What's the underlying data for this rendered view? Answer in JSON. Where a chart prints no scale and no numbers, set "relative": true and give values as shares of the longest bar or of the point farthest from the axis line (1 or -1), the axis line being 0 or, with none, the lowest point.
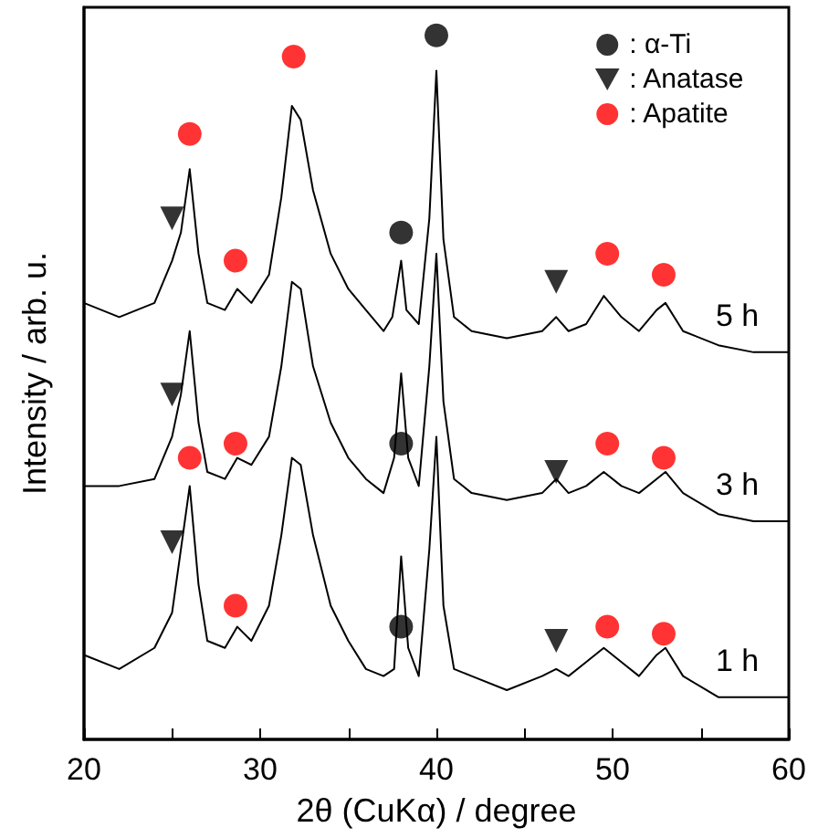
{
  "chart_data": {
    "type": "line",
    "relative": true,
    "xlabel": "2θ (CuKα) / degree",
    "ylabel": "Intensity / arb. u.",
    "xlim": [
      20,
      60
    ],
    "xticks": [
      20,
      {
        "value": 25,
        "label": null
      },
      30,
      {
        "value": 35,
        "label": null
      },
      40,
      {
        "value": 45,
        "label": null
      },
      50,
      {
        "value": 55,
        "label": null
      },
      60
    ],
    "grid": false,
    "legend": "top right",
    "tick_labels": "x",
    "line_style": "solid",
    "series": [
      {
        "name": "5 h",
        "color": "#000000",
        "marker": "none",
        "x": [
          20,
          21,
          22,
          23,
          24,
          25,
          25.5,
          26,
          26.5,
          27,
          28,
          28.7,
          29.5,
          30.5,
          31.2,
          31.8,
          32.3,
          33,
          34,
          35,
          36,
          37,
          37.5,
          38,
          38.3,
          39,
          39.6,
          40,
          40.4,
          41,
          42,
          44,
          46,
          46.8,
          47.5,
          48.5,
          49.5,
          50.5,
          51.5,
          52.5,
          53,
          54,
          56,
          58,
          60
        ],
        "values": [
          0.62,
          0.61,
          0.6,
          0.61,
          0.62,
          0.68,
          0.72,
          0.81,
          0.69,
          0.62,
          0.61,
          0.64,
          0.62,
          0.66,
          0.77,
          0.9,
          0.88,
          0.78,
          0.69,
          0.64,
          0.61,
          0.58,
          0.6,
          0.68,
          0.61,
          0.59,
          0.74,
          0.95,
          0.71,
          0.6,
          0.58,
          0.57,
          0.58,
          0.6,
          0.58,
          0.59,
          0.63,
          0.6,
          0.58,
          0.61,
          0.62,
          0.58,
          0.56,
          0.55,
          0.55
        ]
      },
      {
        "name": "3 h",
        "color": "#000000",
        "marker": "none",
        "x": [
          20,
          22,
          24,
          25,
          25.5,
          26,
          26.5,
          27,
          28,
          28.7,
          29.5,
          30.5,
          31.2,
          31.8,
          32.3,
          33,
          34,
          35,
          36,
          37,
          37.6,
          38,
          38.4,
          39,
          39.6,
          40,
          40.4,
          41,
          42,
          44,
          46,
          46.8,
          47.5,
          48.5,
          49.5,
          50.5,
          51.5,
          52.5,
          53,
          54,
          56,
          58,
          60
        ],
        "values": [
          0.36,
          0.36,
          0.37,
          0.43,
          0.49,
          0.58,
          0.45,
          0.38,
          0.37,
          0.4,
          0.39,
          0.43,
          0.53,
          0.65,
          0.64,
          0.53,
          0.45,
          0.4,
          0.37,
          0.35,
          0.4,
          0.52,
          0.4,
          0.36,
          0.53,
          0.69,
          0.48,
          0.37,
          0.35,
          0.34,
          0.35,
          0.37,
          0.35,
          0.36,
          0.38,
          0.36,
          0.35,
          0.37,
          0.38,
          0.35,
          0.32,
          0.31,
          0.31
        ]
      },
      {
        "name": "1 h",
        "color": "#000000",
        "marker": "none",
        "x": [
          20,
          22,
          24,
          25,
          25.5,
          26,
          26.5,
          27,
          28,
          28.7,
          29.5,
          30.5,
          31.2,
          31.8,
          32.3,
          33,
          34,
          35,
          36,
          37,
          37.6,
          38,
          38.4,
          39,
          39.6,
          40,
          40.4,
          41,
          42,
          44,
          46,
          46.8,
          47.5,
          48.5,
          49.5,
          50.5,
          51.5,
          52.5,
          53,
          54,
          56,
          58,
          60
        ],
        "values": [
          0.12,
          0.1,
          0.13,
          0.18,
          0.27,
          0.36,
          0.22,
          0.14,
          0.13,
          0.16,
          0.14,
          0.19,
          0.29,
          0.4,
          0.39,
          0.29,
          0.19,
          0.14,
          0.1,
          0.09,
          0.1,
          0.26,
          0.13,
          0.09,
          0.27,
          0.43,
          0.19,
          0.1,
          0.09,
          0.07,
          0.09,
          0.1,
          0.09,
          0.11,
          0.13,
          0.11,
          0.09,
          0.12,
          0.13,
          0.09,
          0.06,
          0.06,
          0.06
        ]
      },
      {
        "name": ": α-Ti",
        "type": "scatter",
        "color": "#000000",
        "marker": "circle",
        "x": [
          38,
          40,
          38,
          38
        ],
        "values": [
          0.72,
          1,
          0.42,
          0.16
        ]
      },
      {
        "name": ": Anatase",
        "type": "scatter",
        "color": "#000000",
        "marker": "triangle",
        "x": [
          25,
          46.8,
          25,
          46.8,
          25,
          46.8
        ],
        "values": [
          0.74,
          0.65,
          0.49,
          0.38,
          0.28,
          0.14
        ]
      },
      {
        "name": ": Apatite",
        "type": "scatter",
        "color": "#ff0000",
        "marker": "circle",
        "x": [
          26,
          28.6,
          31.9,
          49.7,
          52.9,
          28.6,
          49.7,
          52.9,
          26,
          28.6,
          49.7,
          52.9
        ],
        "values": [
          0.86,
          0.68,
          0.97,
          0.69,
          0.66,
          0.42,
          0.42,
          0.4,
          0.4,
          0.19,
          0.16,
          0.15
        ]
      }
    ]
  }
}
